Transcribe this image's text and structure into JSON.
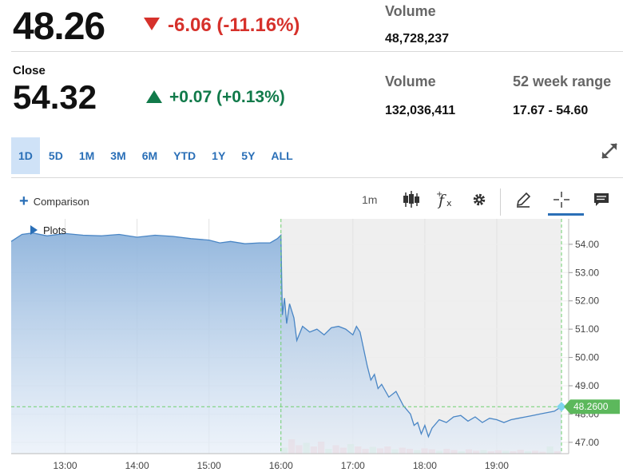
{
  "quote": {
    "last_price": "48.26",
    "change_after": "-6.06 (-11.16%)",
    "volume1_label": "Volume",
    "volume1_value": "48,728,237",
    "close_label": "Close",
    "close_price": "54.32",
    "change_close": "+0.07 (+0.13%)",
    "volume2_label": "Volume",
    "volume2_value": "132,036,411",
    "range_label": "52 week range",
    "range_value": "17.67 - 54.60"
  },
  "colors": {
    "down": "#d6312b",
    "up": "#117a4a",
    "accent": "#2a6fb7",
    "price_tag": "#5cb85c"
  },
  "range_tabs": [
    {
      "label": "1D",
      "active": true
    },
    {
      "label": "5D",
      "active": false
    },
    {
      "label": "1M",
      "active": false
    },
    {
      "label": "3M",
      "active": false
    },
    {
      "label": "6M",
      "active": false
    },
    {
      "label": "YTD",
      "active": false
    },
    {
      "label": "1Y",
      "active": false
    },
    {
      "label": "5Y",
      "active": false
    },
    {
      "label": "ALL",
      "active": false
    }
  ],
  "toolbar": {
    "comparison_label": "Comparison",
    "interval_label": "1m",
    "plots_label": "Plots",
    "icons": [
      "candlestick-icon",
      "function-icon",
      "gear-icon",
      "pencil-icon",
      "crosshair-icon",
      "comment-icon",
      "expand-icon"
    ]
  },
  "chart_data": {
    "type": "area",
    "x_ticks": [
      "13:00",
      "14:00",
      "15:00",
      "16:00",
      "17:00",
      "18:00",
      "19:00"
    ],
    "y_ticks": [
      "47.00",
      "48.00",
      "49.00",
      "50.00",
      "51.00",
      "52.00",
      "53.00",
      "54.00"
    ],
    "ylim": [
      46.6,
      54.9
    ],
    "xlim": [
      12.25,
      20.0
    ],
    "current_price_label": "48.2600",
    "current_price": 48.26,
    "session_break": 16.0,
    "series": [
      {
        "x": [
          12.25,
          12.4,
          12.55,
          12.75,
          13.0,
          13.25,
          13.5,
          13.75,
          14.0,
          14.25,
          14.5,
          14.75,
          15.0,
          15.15,
          15.3,
          15.5,
          15.7,
          15.85,
          15.95,
          16.0,
          16.02,
          16.05,
          16.08,
          16.12,
          16.18,
          16.22,
          16.3,
          16.4,
          16.5,
          16.6,
          16.7,
          16.8,
          16.9,
          17.0,
          17.05,
          17.1,
          17.2,
          17.25,
          17.3,
          17.35,
          17.4,
          17.5,
          17.6,
          17.7,
          17.8,
          17.85,
          17.9,
          17.95,
          18.0,
          18.05,
          18.1,
          18.2,
          18.3,
          18.4,
          18.5,
          18.6,
          18.7,
          18.8,
          18.9,
          19.0,
          19.1,
          19.2,
          19.3,
          19.4,
          19.5,
          19.6,
          19.7,
          19.8,
          19.9
        ],
        "y": [
          54.1,
          54.35,
          54.4,
          54.3,
          54.38,
          54.32,
          54.3,
          54.35,
          54.25,
          54.32,
          54.28,
          54.2,
          54.15,
          54.05,
          54.1,
          54.02,
          54.05,
          54.05,
          54.2,
          54.32,
          51.5,
          52.1,
          51.2,
          51.9,
          51.4,
          50.6,
          51.1,
          50.9,
          51.0,
          50.8,
          51.05,
          51.1,
          51.0,
          50.8,
          51.1,
          50.9,
          49.7,
          49.2,
          49.4,
          48.9,
          49.05,
          48.6,
          48.8,
          48.3,
          48.0,
          47.6,
          47.7,
          47.3,
          47.6,
          47.2,
          47.5,
          47.8,
          47.7,
          47.9,
          47.95,
          47.75,
          47.9,
          47.7,
          47.85,
          47.8,
          47.7,
          47.8,
          47.85,
          47.9,
          47.95,
          48.0,
          48.05,
          48.1,
          48.26
        ]
      }
    ],
    "volume_bars": [
      0.25,
      0.6,
      0.35,
      0.45,
      0.3,
      0.5,
      0.2,
      0.35,
      0.25,
      0.4,
      0.3,
      0.2,
      0.28,
      0.22,
      0.3,
      0.18,
      0.25,
      0.2,
      0.15,
      0.22,
      0.18,
      0.12,
      0.2,
      0.15,
      0.1,
      0.18,
      0.12,
      0.15,
      0.1,
      0.14,
      0.12,
      0.1,
      0.16,
      0.1,
      0.12,
      0.08,
      0.3,
      0.1
    ]
  }
}
